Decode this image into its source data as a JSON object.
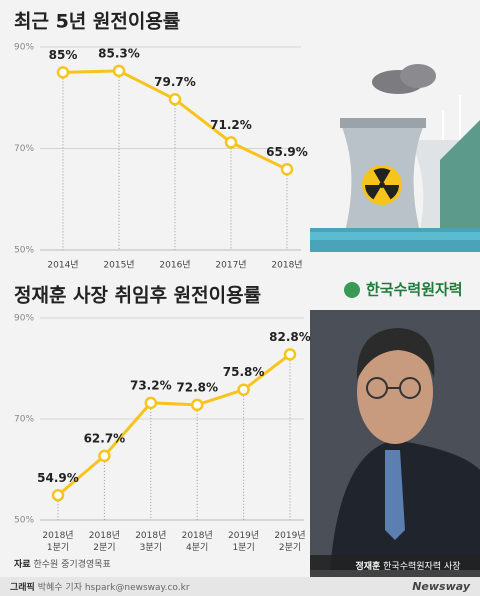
{
  "chart_data": [
    {
      "type": "line",
      "title": "최근 5년 원전이용률",
      "categories": [
        "2014년",
        "2015년",
        "2016년",
        "2017년",
        "2018년"
      ],
      "values": [
        85,
        85.3,
        79.7,
        71.2,
        65.9
      ],
      "value_labels": [
        "85%",
        "85.3%",
        "79.7%",
        "71.2%",
        "65.9%"
      ],
      "color": "#f7c41b",
      "ylim": [
        50,
        90
      ],
      "yticks": [
        {
          "value": 90,
          "label": "90%"
        },
        {
          "value": 70,
          "label": "70%"
        },
        {
          "value": 50,
          "label": "50%"
        }
      ]
    },
    {
      "type": "line",
      "title": "정재훈 사장 취임후 원전이용률",
      "categories": [
        "2018년 1분기",
        "2018년 2분기",
        "2018년 3분기",
        "2018년 4분기",
        "2019년 1분기",
        "2019년 2분기"
      ],
      "values": [
        54.9,
        62.7,
        73.2,
        72.8,
        75.8,
        82.8
      ],
      "value_labels": [
        "54.9%",
        "62.7%",
        "73.2%",
        "72.8%",
        "75.8%",
        "82.8%"
      ],
      "color": "#f7c41b",
      "ylim": [
        50,
        90
      ],
      "yticks": [
        {
          "value": 90,
          "label": "90%"
        },
        {
          "value": 70,
          "label": "70%"
        },
        {
          "value": 50,
          "label": "50%"
        }
      ]
    }
  ],
  "logo": "한국수력원자력",
  "source": {
    "label": "자료",
    "text": "한수원 중기경영목표"
  },
  "caption": {
    "name": "정재훈",
    "text": "한국수력원자력 사장"
  },
  "footer": {
    "label": "그래픽",
    "text": "박혜수 기자 hspark@newsway.co.kr",
    "brand": "Newsway"
  }
}
